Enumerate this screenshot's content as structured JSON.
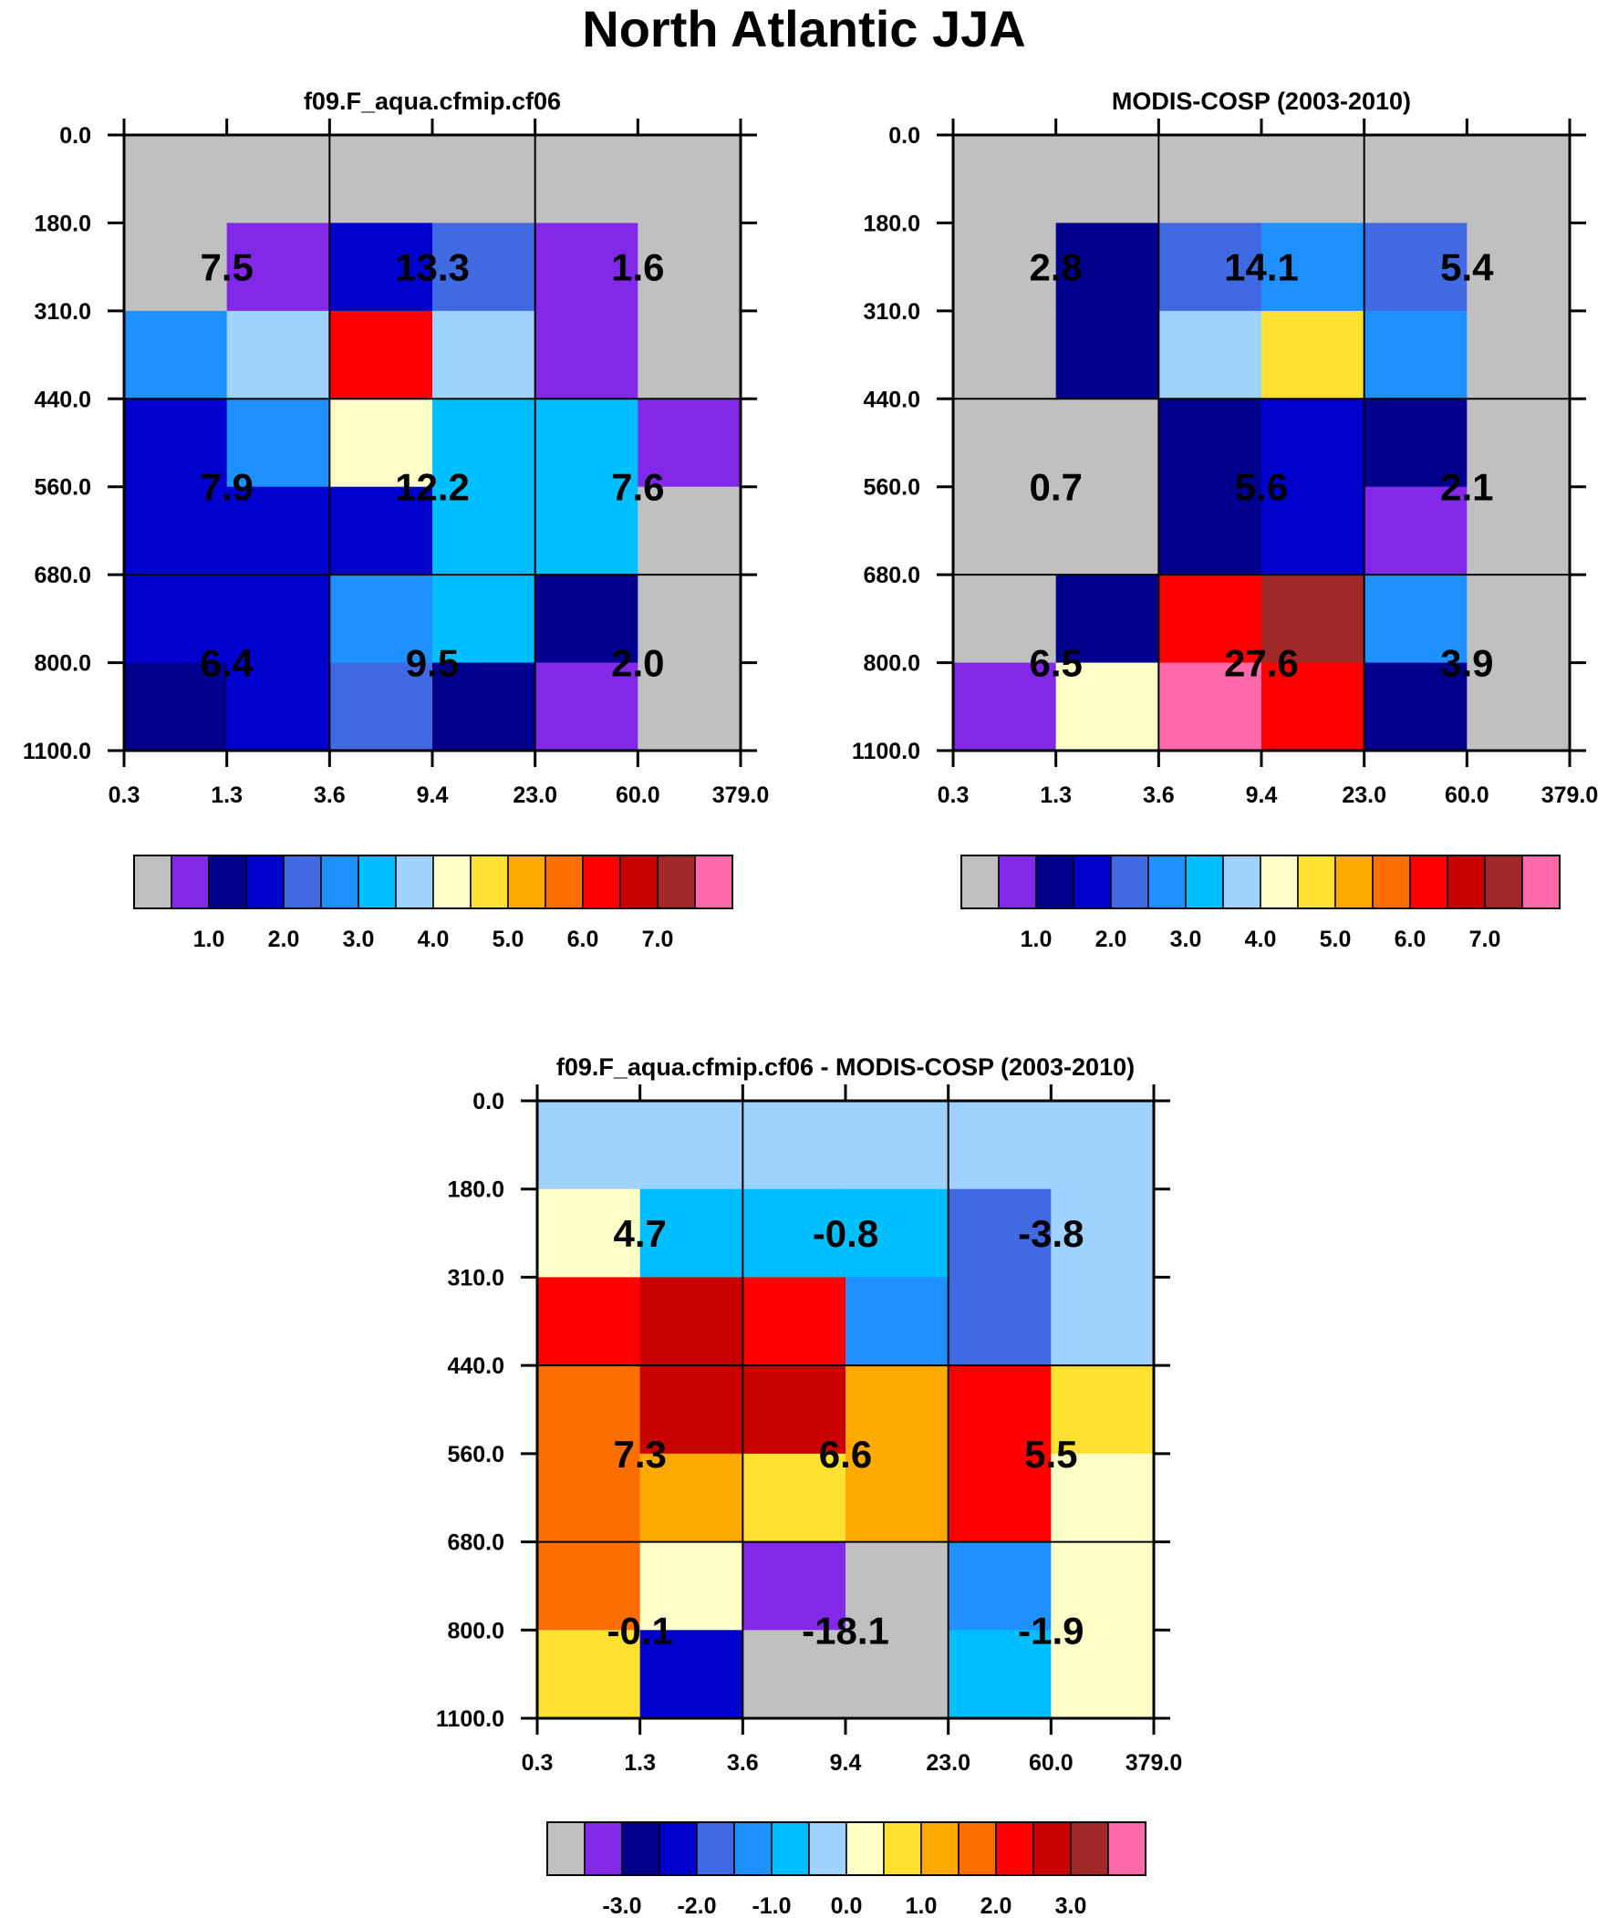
{
  "page_title": "North Atlantic JJA",
  "colors": {
    "palette": [
      "#c0c0c0",
      "#8228e8",
      "#00008c",
      "#0000cd",
      "#4169e1",
      "#1e90ff",
      "#00bfff",
      "#a0d2ff",
      "#ffffc8",
      "#ffe132",
      "#ffaa00",
      "#ff6e00",
      "#ff0000",
      "#c80000",
      "#a02828",
      "#ff69aa"
    ],
    "grid": "#000000"
  },
  "chart_data": [
    {
      "type": "heatmap",
      "title": "f09.F_aqua.cfmip.cf06",
      "x_tick_labels": [
        "0.3",
        "1.3",
        "3.6",
        "9.4",
        "23.0",
        "60.0",
        "379.0"
      ],
      "y_tick_labels": [
        "0.0",
        "180.0",
        "310.0",
        "440.0",
        "560.0",
        "680.0",
        "800.0",
        "1100.0"
      ],
      "cell_colors": [
        [
          0,
          0,
          0,
          0,
          0,
          0
        ],
        [
          0,
          1,
          3,
          4,
          1,
          0
        ],
        [
          5,
          7,
          12,
          7,
          1,
          0
        ],
        [
          3,
          5,
          8,
          6,
          6,
          1
        ],
        [
          3,
          3,
          3,
          6,
          6,
          0
        ],
        [
          3,
          3,
          5,
          6,
          2,
          0
        ],
        [
          2,
          3,
          4,
          2,
          1,
          0
        ]
      ],
      "box_values": [
        [
          "7.5",
          "13.3",
          "1.6"
        ],
        [
          "7.9",
          "12.2",
          "7.6"
        ],
        [
          "6.4",
          "9.5",
          "2.0"
        ]
      ],
      "colorbar": {
        "labels": [
          "1.0",
          "2.0",
          "3.0",
          "4.0",
          "5.0",
          "6.0",
          "7.0"
        ]
      }
    },
    {
      "type": "heatmap",
      "title": "MODIS-COSP (2003-2010)",
      "x_tick_labels": [
        "0.3",
        "1.3",
        "3.6",
        "9.4",
        "23.0",
        "60.0",
        "379.0"
      ],
      "y_tick_labels": [
        "0.0",
        "180.0",
        "310.0",
        "440.0",
        "560.0",
        "680.0",
        "800.0",
        "1100.0"
      ],
      "cell_colors": [
        [
          0,
          0,
          0,
          0,
          0,
          0
        ],
        [
          0,
          2,
          4,
          5,
          4,
          0
        ],
        [
          0,
          2,
          7,
          9,
          5,
          0
        ],
        [
          0,
          0,
          2,
          3,
          2,
          0
        ],
        [
          0,
          0,
          2,
          3,
          1,
          0
        ],
        [
          0,
          2,
          12,
          14,
          5,
          0
        ],
        [
          1,
          8,
          15,
          12,
          2,
          0
        ]
      ],
      "box_values": [
        [
          "2.8",
          "14.1",
          "5.4"
        ],
        [
          "0.7",
          "5.6",
          "2.1"
        ],
        [
          "6.5",
          "27.6",
          "3.9"
        ]
      ],
      "colorbar": {
        "labels": [
          "1.0",
          "2.0",
          "3.0",
          "4.0",
          "5.0",
          "6.0",
          "7.0"
        ]
      }
    },
    {
      "type": "heatmap",
      "title": "f09.F_aqua.cfmip.cf06 - MODIS-COSP (2003-2010)",
      "x_tick_labels": [
        "0.3",
        "1.3",
        "3.6",
        "9.4",
        "23.0",
        "60.0",
        "379.0"
      ],
      "y_tick_labels": [
        "0.0",
        "180.0",
        "310.0",
        "440.0",
        "560.0",
        "680.0",
        "800.0",
        "1100.0"
      ],
      "cell_colors": [
        [
          7,
          7,
          7,
          7,
          7,
          7
        ],
        [
          8,
          6,
          6,
          6,
          4,
          7
        ],
        [
          12,
          13,
          12,
          5,
          4,
          7
        ],
        [
          11,
          13,
          13,
          10,
          12,
          9
        ],
        [
          11,
          10,
          9,
          10,
          12,
          8
        ],
        [
          11,
          8,
          1,
          0,
          5,
          8
        ],
        [
          9,
          3,
          0,
          0,
          6,
          8
        ]
      ],
      "box_values": [
        [
          "4.7",
          "-0.8",
          "-3.8"
        ],
        [
          "7.3",
          "6.6",
          "5.5"
        ],
        [
          "-0.1",
          "-18.1",
          "-1.9"
        ]
      ],
      "colorbar": {
        "labels": [
          "-3.0",
          "-2.0",
          "-1.0",
          "0.0",
          "1.0",
          "2.0",
          "3.0"
        ]
      }
    }
  ]
}
